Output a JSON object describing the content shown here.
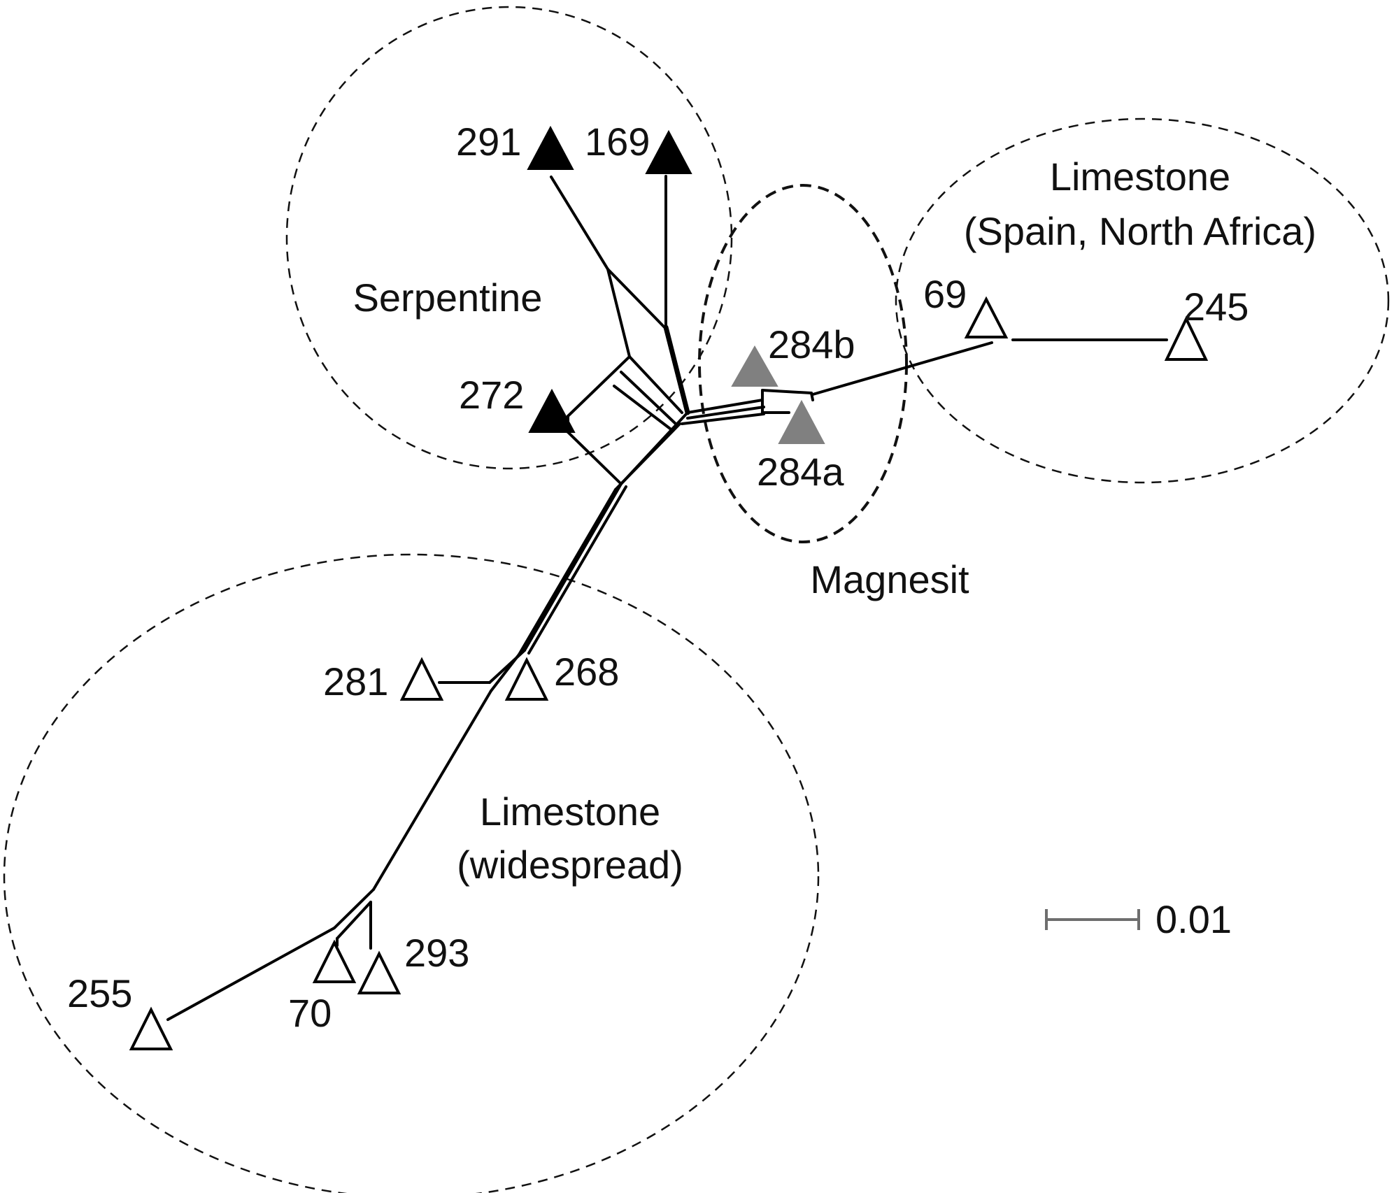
{
  "groups": {
    "serpentine": "Serpentine",
    "magnesit": "Magnesit",
    "limestone_spain_line1": "Limestone",
    "limestone_spain_line2": "(Spain, North Africa)",
    "limestone_widespread_line1": "Limestone",
    "limestone_widespread_line2": "(widespread)"
  },
  "samples": [
    {
      "id": "291",
      "substrate": "Serpentine",
      "marker": "black"
    },
    {
      "id": "169",
      "substrate": "Serpentine",
      "marker": "black"
    },
    {
      "id": "272",
      "substrate": "Serpentine",
      "marker": "black"
    },
    {
      "id": "284b",
      "substrate": "Magnesit",
      "marker": "grey"
    },
    {
      "id": "284a",
      "substrate": "Magnesit",
      "marker": "grey"
    },
    {
      "id": "69",
      "substrate": "Limestone (Spain, North Africa)",
      "marker": "open"
    },
    {
      "id": "245",
      "substrate": "Limestone (Spain, North Africa)",
      "marker": "open"
    },
    {
      "id": "281",
      "substrate": "Limestone (widespread)",
      "marker": "open"
    },
    {
      "id": "268",
      "substrate": "Limestone (widespread)",
      "marker": "open"
    },
    {
      "id": "293",
      "substrate": "Limestone (widespread)",
      "marker": "open"
    },
    {
      "id": "70",
      "substrate": "Limestone (widespread)",
      "marker": "open"
    },
    {
      "id": "255",
      "substrate": "Limestone (widespread)",
      "marker": "open"
    }
  ],
  "scale": {
    "label": "0.01",
    "color": "#6e6e6e"
  },
  "marker_colors": {
    "black": "#000000",
    "grey": "#808080",
    "open": "#ffffff"
  }
}
